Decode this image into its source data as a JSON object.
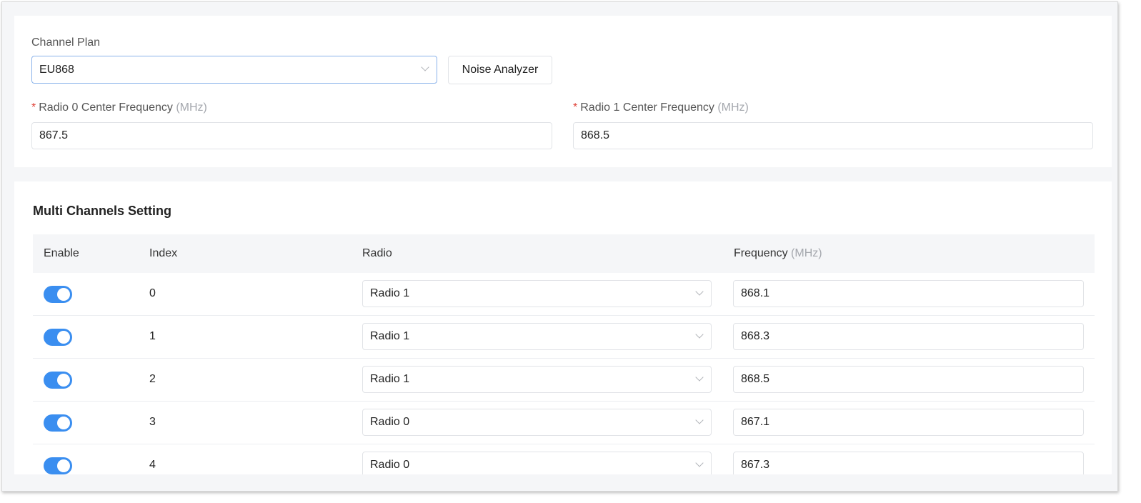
{
  "channel_plan": {
    "label": "Channel Plan",
    "value": "EU868",
    "noise_button": "Noise Analyzer"
  },
  "radio0": {
    "label": "Radio 0 Center Frequency",
    "unit": "(MHz)",
    "value": "867.5"
  },
  "radio1": {
    "label": "Radio 1 Center Frequency",
    "unit": "(MHz)",
    "value": "868.5"
  },
  "required_mark": "*",
  "multi": {
    "title": "Multi Channels Setting",
    "headers": {
      "enable": "Enable",
      "index": "Index",
      "radio": "Radio",
      "frequency": "Frequency",
      "unit": "(MHz)"
    },
    "rows": [
      {
        "enabled": true,
        "index": "0",
        "radio": "Radio 1",
        "frequency": "868.1"
      },
      {
        "enabled": true,
        "index": "1",
        "radio": "Radio 1",
        "frequency": "868.3"
      },
      {
        "enabled": true,
        "index": "2",
        "radio": "Radio 1",
        "frequency": "868.5"
      },
      {
        "enabled": true,
        "index": "3",
        "radio": "Radio 0",
        "frequency": "867.1"
      },
      {
        "enabled": true,
        "index": "4",
        "radio": "Radio 0",
        "frequency": "867.3"
      }
    ]
  },
  "colors": {
    "accent": "#3a8ef0",
    "required": "#e0443a"
  }
}
